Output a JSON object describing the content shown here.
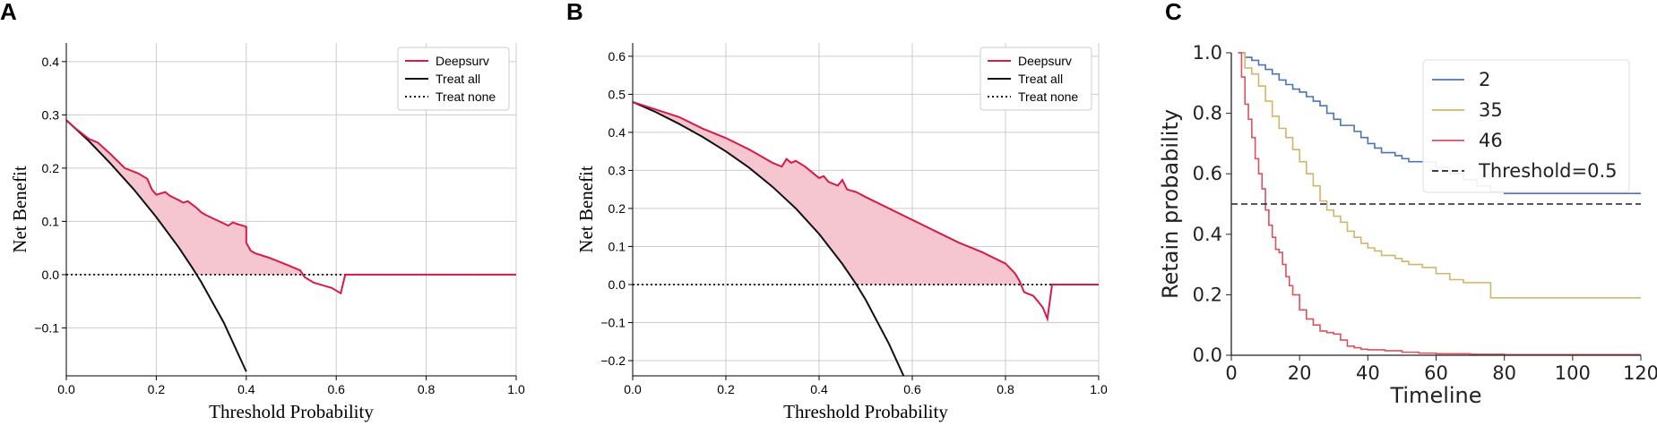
{
  "panels": {
    "a": {
      "letter": "A"
    },
    "b": {
      "letter": "B"
    },
    "c": {
      "letter": "C"
    }
  },
  "colors": {
    "deepsurv": "#d81b46",
    "deepsurv_fill": "#f5c6d0",
    "treat_all": "#111111",
    "treat_none": "#111111",
    "grid": "#cccccc",
    "c_2": "#4a74b5",
    "c_35": "#d2b56a",
    "c_46": "#d9525e",
    "c_threshold": "#222222"
  },
  "chart_data": [
    {
      "id": "A",
      "type": "line",
      "title": "",
      "xlabel": "Threshold Probability",
      "ylabel": "Net Benefit",
      "xlim": [
        0,
        1
      ],
      "ylim": [
        -0.19,
        0.435
      ],
      "xticks": [
        0.0,
        0.2,
        0.4,
        0.6,
        0.8,
        1.0
      ],
      "xtick_labels": [
        "0.0",
        "0.2",
        "0.4",
        "0.6",
        "0.8",
        "1.0"
      ],
      "yticks": [
        -0.1,
        0.0,
        0.1,
        0.2,
        0.3,
        0.4
      ],
      "ytick_labels": [
        "−0.1",
        "0.0",
        "0.1",
        "0.2",
        "0.3",
        "0.4"
      ],
      "grid": true,
      "legend_position": "top-right",
      "fill_between": "Deepsurv and max(Treat all, Treat none)",
      "series": [
        {
          "name": "Deepsurv",
          "x": [
            0.0,
            0.02,
            0.05,
            0.07,
            0.1,
            0.13,
            0.16,
            0.18,
            0.19,
            0.2,
            0.22,
            0.23,
            0.25,
            0.26,
            0.27,
            0.29,
            0.3,
            0.31,
            0.32,
            0.34,
            0.36,
            0.37,
            0.38,
            0.4,
            0.4,
            0.41,
            0.42,
            0.45,
            0.48,
            0.5,
            0.52,
            0.53,
            0.55,
            0.57,
            0.59,
            0.61,
            0.62,
            0.7,
            0.8,
            0.9,
            1.0
          ],
          "y": [
            0.29,
            0.275,
            0.255,
            0.248,
            0.225,
            0.2,
            0.19,
            0.18,
            0.16,
            0.15,
            0.155,
            0.148,
            0.14,
            0.135,
            0.138,
            0.125,
            0.117,
            0.112,
            0.108,
            0.1,
            0.092,
            0.098,
            0.095,
            0.09,
            0.06,
            0.045,
            0.04,
            0.032,
            0.022,
            0.015,
            0.008,
            -0.005,
            -0.015,
            -0.02,
            -0.025,
            -0.035,
            0.0,
            0.0,
            0.0,
            0.0,
            0.0
          ]
        },
        {
          "name": "Treat all",
          "x": [
            0.0,
            0.05,
            0.1,
            0.15,
            0.2,
            0.25,
            0.28,
            0.3,
            0.35,
            0.4
          ],
          "y": [
            0.29,
            0.251,
            0.207,
            0.16,
            0.108,
            0.051,
            0.013,
            -0.014,
            -0.09,
            -0.182
          ]
        },
        {
          "name": "Treat none",
          "x": [
            0.0,
            1.0
          ],
          "y": [
            0.0,
            0.0
          ]
        }
      ]
    },
    {
      "id": "B",
      "type": "line",
      "title": "",
      "xlabel": "Threshold Probability",
      "ylabel": "Net Benefit",
      "xlim": [
        0,
        1
      ],
      "ylim": [
        -0.24,
        0.635
      ],
      "xticks": [
        0.0,
        0.2,
        0.4,
        0.6,
        0.8,
        1.0
      ],
      "xtick_labels": [
        "0.0",
        "0.2",
        "0.4",
        "0.6",
        "0.8",
        "1.0"
      ],
      "yticks": [
        -0.2,
        -0.1,
        0.0,
        0.1,
        0.2,
        0.3,
        0.4,
        0.5,
        0.6
      ],
      "ytick_labels": [
        "−0.2",
        "−0.1",
        "0.0",
        "0.1",
        "0.2",
        "0.3",
        "0.4",
        "0.5",
        "0.6"
      ],
      "grid": true,
      "legend_position": "top-right",
      "fill_between": "Deepsurv and max(Treat all, Treat none)",
      "series": [
        {
          "name": "Deepsurv",
          "x": [
            0.0,
            0.05,
            0.1,
            0.15,
            0.2,
            0.25,
            0.3,
            0.32,
            0.33,
            0.34,
            0.35,
            0.37,
            0.38,
            0.4,
            0.41,
            0.42,
            0.44,
            0.45,
            0.46,
            0.48,
            0.5,
            0.55,
            0.6,
            0.65,
            0.7,
            0.75,
            0.8,
            0.82,
            0.83,
            0.84,
            0.86,
            0.88,
            0.89,
            0.9,
            1.0
          ],
          "y": [
            0.48,
            0.46,
            0.44,
            0.41,
            0.385,
            0.355,
            0.32,
            0.31,
            0.33,
            0.32,
            0.325,
            0.31,
            0.3,
            0.28,
            0.285,
            0.27,
            0.26,
            0.275,
            0.25,
            0.243,
            0.23,
            0.2,
            0.17,
            0.14,
            0.11,
            0.085,
            0.055,
            0.03,
            0.01,
            -0.02,
            -0.03,
            -0.06,
            -0.09,
            0.0,
            0.0
          ]
        },
        {
          "name": "Treat all",
          "x": [
            0.0,
            0.05,
            0.1,
            0.15,
            0.2,
            0.25,
            0.3,
            0.35,
            0.4,
            0.45,
            0.48,
            0.5,
            0.55,
            0.585
          ],
          "y": [
            0.48,
            0.453,
            0.422,
            0.388,
            0.35,
            0.307,
            0.257,
            0.2,
            0.133,
            0.054,
            0.0,
            -0.04,
            -0.156,
            -0.25
          ]
        },
        {
          "name": "Treat none",
          "x": [
            0.0,
            1.0
          ],
          "y": [
            0.0,
            0.0
          ]
        }
      ]
    },
    {
      "id": "C",
      "type": "line",
      "title": "",
      "xlabel": "Timeline",
      "ylabel": "Retain probability",
      "xlim": [
        0,
        120
      ],
      "ylim": [
        0,
        1.0
      ],
      "xticks": [
        0,
        20,
        40,
        60,
        80,
        100,
        120
      ],
      "xtick_labels": [
        "0",
        "20",
        "40",
        "60",
        "80",
        "100",
        "120"
      ],
      "yticks": [
        0.0,
        0.2,
        0.4,
        0.6,
        0.8,
        1.0
      ],
      "ytick_labels": [
        "0.0",
        "0.2",
        "0.4",
        "0.6",
        "0.8",
        "1.0"
      ],
      "grid": false,
      "legend_position": "top-right",
      "series": [
        {
          "name": "2",
          "x": [
            2,
            4,
            6,
            8,
            10,
            12,
            14,
            16,
            18,
            20,
            22,
            24,
            26,
            28,
            30,
            32,
            34,
            36,
            38,
            40,
            42,
            44,
            46,
            48,
            50,
            52,
            56,
            60,
            64,
            68,
            72,
            76,
            80,
            90,
            100,
            110,
            120
          ],
          "y": [
            1.0,
            0.985,
            0.975,
            0.96,
            0.945,
            0.93,
            0.91,
            0.895,
            0.88,
            0.87,
            0.855,
            0.84,
            0.825,
            0.8,
            0.78,
            0.76,
            0.76,
            0.74,
            0.72,
            0.7,
            0.685,
            0.67,
            0.67,
            0.66,
            0.65,
            0.64,
            0.64,
            0.62,
            0.6,
            0.58,
            0.56,
            0.54,
            0.535,
            0.535,
            0.535,
            0.535,
            0.535
          ]
        },
        {
          "name": "35",
          "x": [
            2,
            4,
            6,
            8,
            10,
            12,
            14,
            16,
            18,
            20,
            22,
            24,
            26,
            28,
            30,
            32,
            34,
            36,
            38,
            40,
            42,
            44,
            46,
            48,
            50,
            52,
            56,
            60,
            64,
            68,
            72,
            76,
            80,
            90,
            100,
            110,
            120
          ],
          "y": [
            1.0,
            0.95,
            0.93,
            0.89,
            0.84,
            0.79,
            0.75,
            0.72,
            0.68,
            0.64,
            0.6,
            0.56,
            0.51,
            0.48,
            0.46,
            0.44,
            0.41,
            0.39,
            0.37,
            0.355,
            0.345,
            0.33,
            0.33,
            0.32,
            0.31,
            0.3,
            0.29,
            0.27,
            0.25,
            0.24,
            0.24,
            0.19,
            0.19,
            0.19,
            0.19,
            0.19,
            0.19
          ]
        },
        {
          "name": "46",
          "x": [
            2,
            3,
            4,
            5,
            6,
            7,
            8,
            9,
            10,
            11,
            12,
            13,
            14,
            15,
            16,
            17,
            18,
            20,
            22,
            24,
            26,
            28,
            30,
            32,
            34,
            36,
            38,
            40,
            45,
            50,
            55,
            60,
            70,
            80,
            90,
            100,
            110,
            120
          ],
          "y": [
            1.0,
            0.92,
            0.83,
            0.78,
            0.72,
            0.65,
            0.6,
            0.55,
            0.48,
            0.43,
            0.39,
            0.35,
            0.34,
            0.3,
            0.26,
            0.23,
            0.2,
            0.15,
            0.12,
            0.1,
            0.08,
            0.075,
            0.07,
            0.05,
            0.03,
            0.025,
            0.02,
            0.018,
            0.015,
            0.01,
            0.007,
            0.005,
            0.003,
            0.002,
            0.002,
            0.002,
            0.002,
            0.002
          ]
        },
        {
          "name": "Threshold=0.5",
          "style": "dashed",
          "x": [
            0,
            120
          ],
          "y": [
            0.5,
            0.5
          ]
        }
      ]
    }
  ]
}
